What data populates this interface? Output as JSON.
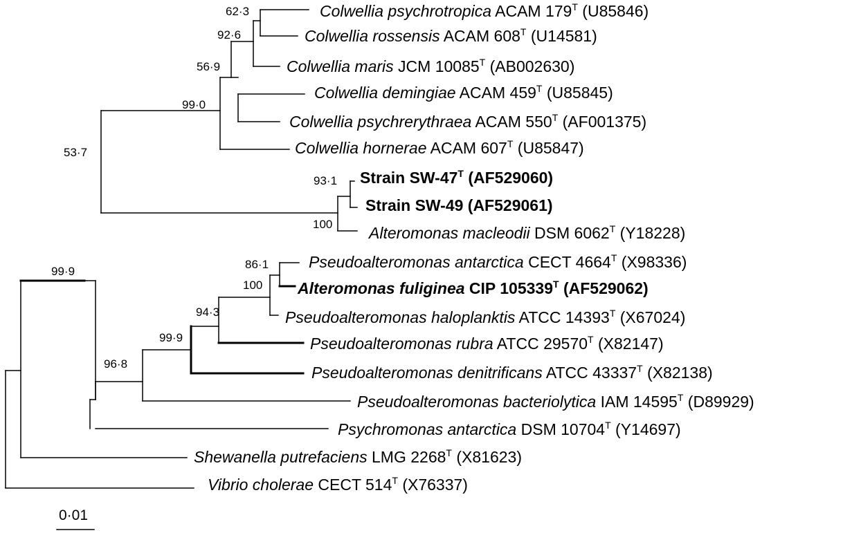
{
  "leaves": [
    {
      "id": "c_psychrotropica",
      "parts": [
        {
          "t": "Colwellia psychrotropica",
          "i": true
        },
        {
          "t": " ACAM 179"
        },
        {
          "t": "T",
          "sup": true
        },
        {
          "t": " (U85846)"
        }
      ]
    },
    {
      "id": "c_rossensis",
      "parts": [
        {
          "t": "Colwellia rossensis",
          "i": true
        },
        {
          "t": " ACAM 608"
        },
        {
          "t": "T",
          "sup": true
        },
        {
          "t": " (U14581)"
        }
      ]
    },
    {
      "id": "c_maris",
      "parts": [
        {
          "t": "Colwellia maris",
          "i": true
        },
        {
          "t": " JCM 10085"
        },
        {
          "t": "T",
          "sup": true
        },
        {
          "t": " (AB002630)"
        }
      ]
    },
    {
      "id": "c_demingiae",
      "parts": [
        {
          "t": "Colwellia demingiae",
          "i": true
        },
        {
          "t": " ACAM 459"
        },
        {
          "t": "T",
          "sup": true
        },
        {
          "t": " (U85845)"
        }
      ]
    },
    {
      "id": "c_psychrerythraea",
      "parts": [
        {
          "t": "Colwellia psychrerythraea",
          "i": true
        },
        {
          "t": " ACAM 550"
        },
        {
          "t": "T",
          "sup": true
        },
        {
          "t": " (AF001375)"
        }
      ]
    },
    {
      "id": "c_hornerae",
      "parts": [
        {
          "t": "Colwellia hornerae",
          "i": true
        },
        {
          "t": " ACAM 607"
        },
        {
          "t": "T",
          "sup": true
        },
        {
          "t": " (U85847)"
        }
      ]
    },
    {
      "id": "sw47",
      "bold": true,
      "parts": [
        {
          "t": "Strain SW-47"
        },
        {
          "t": "T",
          "sup": true
        },
        {
          "t": " (AF529060)"
        }
      ]
    },
    {
      "id": "sw49",
      "bold": true,
      "parts": [
        {
          "t": "Strain SW-49 (AF529061)"
        }
      ]
    },
    {
      "id": "a_macleodii",
      "parts": [
        {
          "t": "Alteromonas macleodii",
          "i": true
        },
        {
          "t": " DSM 6062"
        },
        {
          "t": "T",
          "sup": true
        },
        {
          "t": " (Y18228)"
        }
      ]
    },
    {
      "id": "p_antarctica",
      "parts": [
        {
          "t": "Pseudoalteromonas antarctica",
          "i": true
        },
        {
          "t": " CECT 4664"
        },
        {
          "t": "T",
          "sup": true
        },
        {
          "t": " (X98336)"
        }
      ]
    },
    {
      "id": "a_fuliginea",
      "bold": true,
      "parts": [
        {
          "t": "Alteromonas fuliginea",
          "i": true
        },
        {
          "t": " CIP 105339"
        },
        {
          "t": "T",
          "sup": true
        },
        {
          "t": " (AF529062)"
        }
      ]
    },
    {
      "id": "p_haloplanktis",
      "parts": [
        {
          "t": "Pseudoalteromonas haloplanktis",
          "i": true
        },
        {
          "t": " ATCC 14393"
        },
        {
          "t": "T",
          "sup": true
        },
        {
          "t": " (X67024)"
        }
      ]
    },
    {
      "id": "p_rubra",
      "parts": [
        {
          "t": "Pseudoalteromonas rubra",
          "i": true
        },
        {
          "t": " ATCC 29570"
        },
        {
          "t": "T",
          "sup": true
        },
        {
          "t": " (X82147)"
        }
      ]
    },
    {
      "id": "p_denitrificans",
      "parts": [
        {
          "t": "Pseudoalteromonas denitrificans",
          "i": true
        },
        {
          "t": " ATCC 43337"
        },
        {
          "t": "T",
          "sup": true
        },
        {
          "t": " (X82138)"
        }
      ]
    },
    {
      "id": "p_bacteriolytica",
      "parts": [
        {
          "t": "Pseudoalteromonas bacteriolytica",
          "i": true
        },
        {
          "t": " IAM 14595"
        },
        {
          "t": "T",
          "sup": true
        },
        {
          "t": " (D89929)"
        }
      ]
    },
    {
      "id": "ps_antarctica",
      "parts": [
        {
          "t": "Psychromonas antarctica",
          "i": true
        },
        {
          "t": " DSM 10704"
        },
        {
          "t": "T",
          "sup": true
        },
        {
          "t": " (Y14697)"
        }
      ]
    },
    {
      "id": "s_putrefaciens",
      "parts": [
        {
          "t": "Shewanella putrefaciens",
          "i": true
        },
        {
          "t": " LMG 2268"
        },
        {
          "t": "T",
          "sup": true
        },
        {
          "t": " (X81623)"
        }
      ]
    },
    {
      "id": "v_cholerae",
      "parts": [
        {
          "t": "Vibrio cholerae",
          "i": true
        },
        {
          "t": " CECT 514"
        },
        {
          "t": "T",
          "sup": true
        },
        {
          "t": " (X76337)"
        }
      ]
    }
  ],
  "bootstrap": {
    "b62_3": "62·3",
    "b92_6": "92·6",
    "b56_9": "56·9",
    "b99_0": "99·0",
    "b53_7": "53·7",
    "b93_1": "93·1",
    "b100_a": "100",
    "b99_9_root": "99·9",
    "b86_1": "86·1",
    "b100_b": "100",
    "b94_3": "94·3",
    "b99_9": "99·9",
    "b96_8": "96·8"
  },
  "scale_bar": {
    "label": "0·01"
  }
}
